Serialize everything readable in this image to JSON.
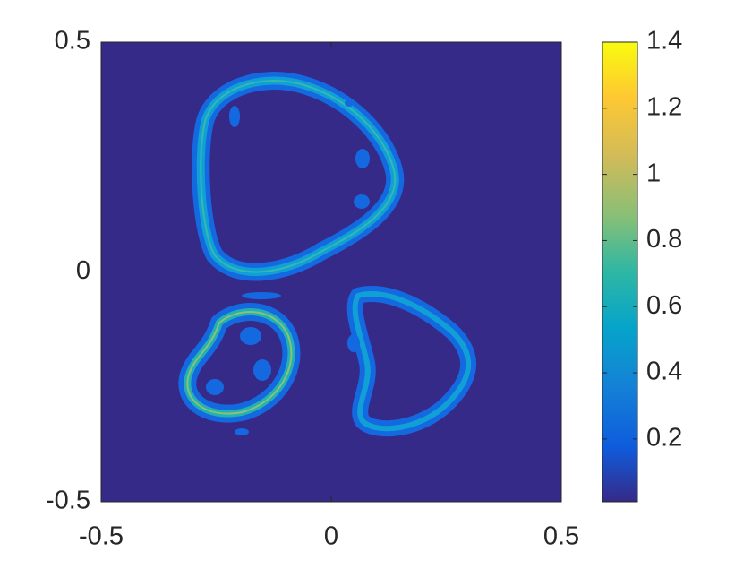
{
  "chart_data": {
    "type": "contour",
    "xlim": [
      -0.5,
      0.5
    ],
    "xticks": [
      -0.5,
      0,
      0.5
    ],
    "ylim": [
      -0.5,
      0.5
    ],
    "yticks": [
      -0.5,
      0,
      0.5
    ],
    "colorbar": {
      "clim": [
        0.01,
        1.4
      ],
      "ticks": [
        0.2,
        0.4,
        0.6,
        0.8,
        1,
        1.2,
        1.4
      ]
    }
  }
}
